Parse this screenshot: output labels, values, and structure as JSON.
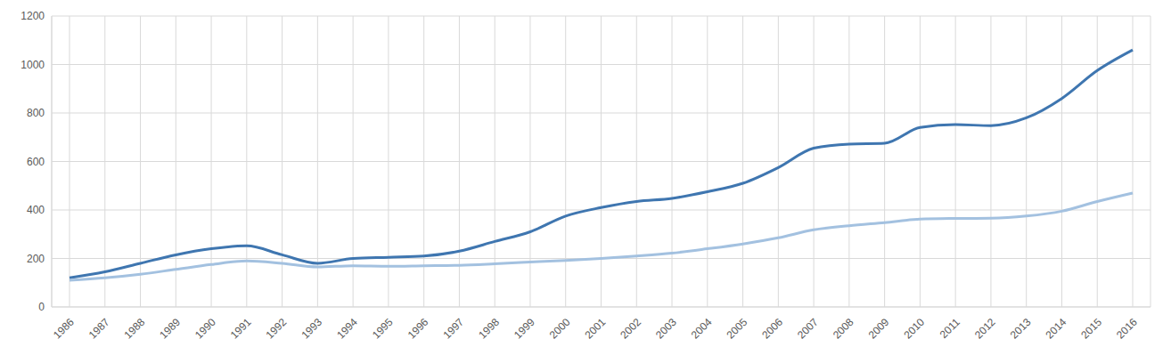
{
  "chart_data": {
    "type": "line",
    "categories": [
      "1986",
      "1987",
      "1988",
      "1989",
      "1990",
      "1991",
      "1992",
      "1993",
      "1994",
      "1995",
      "1996",
      "1997",
      "1998",
      "1999",
      "2000",
      "2001",
      "2002",
      "2003",
      "2004",
      "2005",
      "2006",
      "2007",
      "2008",
      "2009",
      "2010",
      "2011",
      "2012",
      "2013",
      "2014",
      "2015",
      "2016"
    ],
    "series": [
      {
        "color": "#3f76b0",
        "values": [
          120,
          145,
          180,
          215,
          240,
          252,
          215,
          180,
          200,
          205,
          210,
          230,
          270,
          310,
          375,
          410,
          435,
          448,
          475,
          510,
          575,
          655,
          672,
          675,
          740,
          752,
          748,
          780,
          860,
          975,
          1060
        ]
      },
      {
        "color": "#a3c1e0",
        "values": [
          110,
          120,
          135,
          155,
          175,
          190,
          180,
          165,
          170,
          168,
          170,
          172,
          178,
          185,
          192,
          200,
          210,
          222,
          240,
          260,
          285,
          318,
          335,
          348,
          362,
          365,
          366,
          375,
          395,
          435,
          470
        ]
      }
    ],
    "ylim": [
      0,
      1200
    ],
    "yticks": [
      0,
      200,
      400,
      600,
      800,
      1000,
      1200
    ],
    "grid": true
  }
}
